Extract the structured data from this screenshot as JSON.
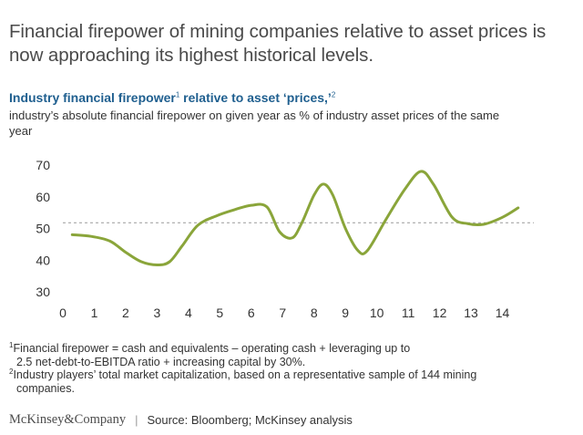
{
  "headline": "Financial firepower of mining companies relative to asset prices is now approaching its highest historical levels.",
  "chart_title": {
    "text_a": "Industry financial firepower",
    "sup_a": "1",
    "text_b": " relative to asset ‘prices,’",
    "sup_b": "2"
  },
  "chart_subtitle": "industry’s absolute financial firepower on given year as % of industry asset prices of the same year",
  "chart_data": {
    "type": "line",
    "x": [
      0.3,
      0.9,
      1.5,
      2.0,
      2.5,
      3.0,
      3.4,
      3.8,
      4.3,
      4.9,
      5.5,
      6.0,
      6.5,
      6.9,
      7.3,
      7.6,
      8.0,
      8.3,
      8.6,
      9.0,
      9.4,
      9.7,
      10.3,
      10.9,
      11.4,
      11.8,
      12.4,
      12.9,
      13.4,
      14.0,
      14.5
    ],
    "y": [
      48,
      47.5,
      46,
      42.5,
      39.5,
      38.5,
      39.5,
      44.5,
      51,
      54,
      56,
      57.3,
      56.8,
      49,
      47,
      51.5,
      60.5,
      64,
      60.5,
      50,
      43,
      43,
      53,
      62.5,
      68,
      64,
      53.5,
      51.5,
      51.3,
      53.5,
      56.5
    ],
    "reference_line": 51.8,
    "xlim": [
      0,
      15
    ],
    "ylim": [
      30,
      70
    ],
    "x_ticks": [
      "0",
      "1",
      "2",
      "3",
      "4",
      "5",
      "6",
      "7",
      "8",
      "9",
      "10",
      "11",
      "12",
      "13",
      "14"
    ],
    "y_ticks": [
      "30",
      "40",
      "50",
      "60",
      "70"
    ],
    "line_color": "#8aa53a",
    "reference_color": "#9a9a9a"
  },
  "footnotes": [
    {
      "num": "1",
      "line1": "Financial firepower = cash and equivalents – operating cash + leveraging up to",
      "line2": "2.5 net-debt-to-EBITDA ratio + increasing capital by 30%."
    },
    {
      "num": "2",
      "line1": "Industry players’ total market capitalization, based on a representative sample of 144 mining",
      "line2": "companies."
    }
  ],
  "brand": "McKinsey&Company",
  "divider": "|",
  "source": "Source: Bloomberg; McKinsey analysis"
}
